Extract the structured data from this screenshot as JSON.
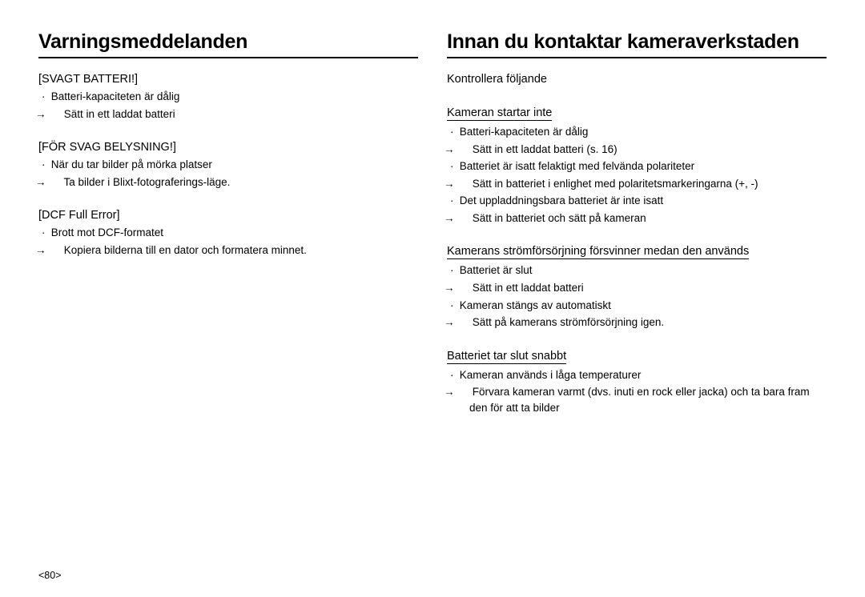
{
  "page_number": "<80>",
  "left": {
    "heading": "Varningsmeddelanden",
    "sections": [
      {
        "title": "[SVAGT BATTERI!]",
        "items": [
          {
            "text": "Batteri-kapaciteten är dålig",
            "arrows": [
              "Sätt in ett laddat batteri"
            ]
          }
        ]
      },
      {
        "title": "[FÖR SVAG BELYSNING!]",
        "items": [
          {
            "text": "När du tar bilder på mörka platser",
            "arrows": [
              "Ta bilder i Blixt-fotograferings-läge."
            ]
          }
        ]
      },
      {
        "title": "[DCF Full Error]",
        "items": [
          {
            "text": "Brott mot DCF-formatet",
            "arrows": [
              "Kopiera bilderna till en dator och formatera minnet."
            ]
          }
        ]
      }
    ]
  },
  "right": {
    "heading": "Innan du kontaktar kameraverkstaden",
    "intro": "Kontrollera följande",
    "sections": [
      {
        "title": "Kameran startar inte",
        "underline": true,
        "items": [
          {
            "text": "Batteri-kapaciteten är dålig",
            "arrows": [
              "Sätt in ett laddat batteri (s. 16)"
            ]
          },
          {
            "text": "Batteriet är isatt felaktigt med felvända polariteter",
            "arrows": [
              "Sätt in batteriet i enlighet med polaritetsmarkeringarna (+, -)"
            ]
          },
          {
            "text": "Det uppladdningsbara batteriet är inte isatt",
            "arrows": [
              "Sätt in batteriet och sätt på kameran"
            ]
          }
        ]
      },
      {
        "title": "Kamerans strömförsörjning försvinner medan den används",
        "underline": true,
        "items": [
          {
            "text": "Batteriet är slut",
            "arrows": [
              "Sätt in ett laddat batteri"
            ]
          },
          {
            "text": "Kameran stängs av automatiskt",
            "arrows": [
              "Sätt på kamerans strömförsörjning igen."
            ]
          }
        ]
      },
      {
        "title": "Batteriet tar slut snabbt",
        "underline": true,
        "items": [
          {
            "text": "Kameran används i låga temperaturer",
            "arrows": [
              "Förvara kameran varmt (dvs. inuti en rock eller jacka) och ta bara fram den för att ta bilder"
            ]
          }
        ]
      }
    ]
  }
}
